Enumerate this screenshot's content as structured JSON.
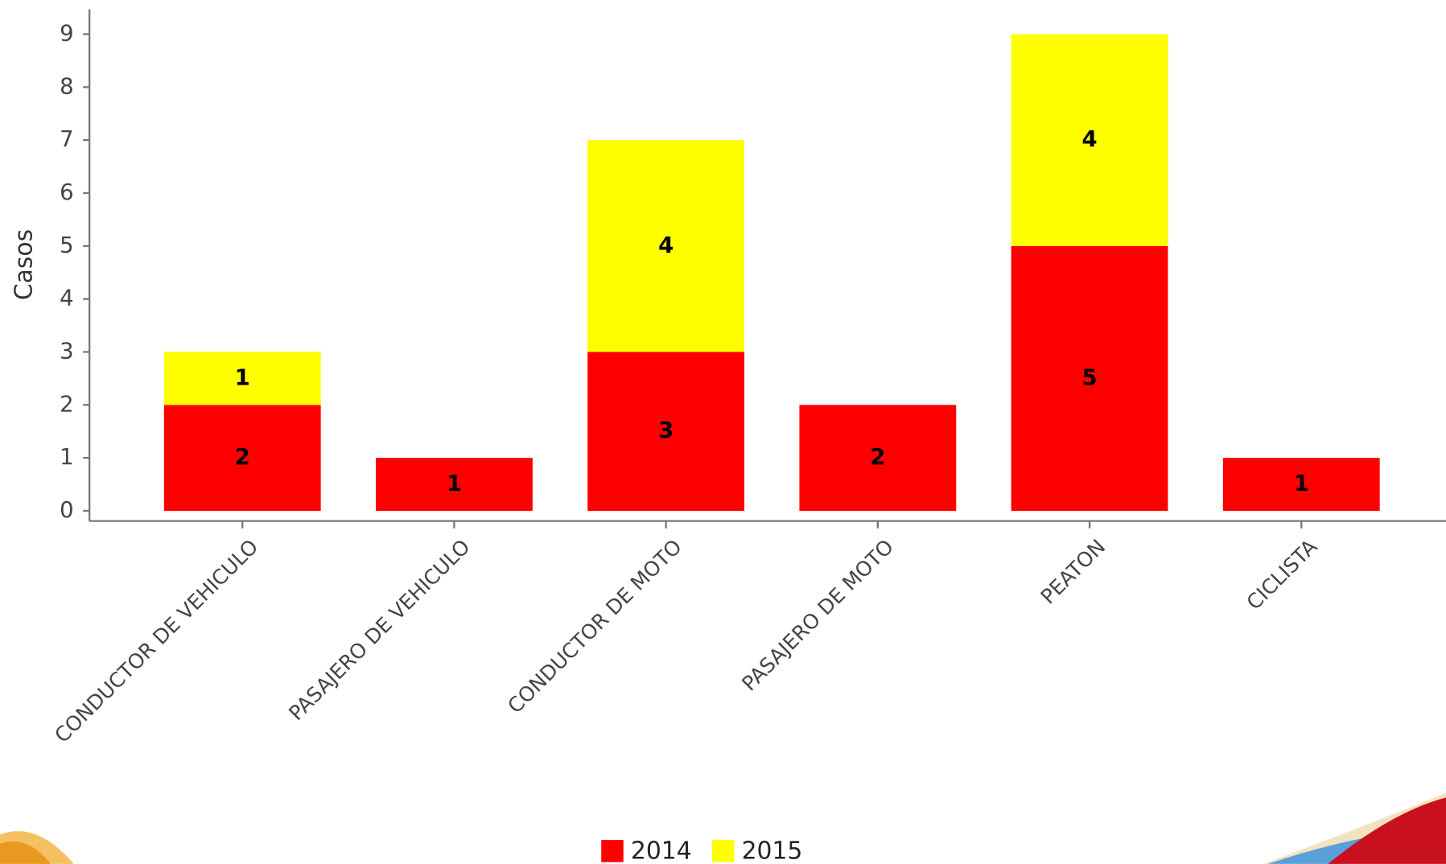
{
  "chart_data": {
    "type": "stacked_bar",
    "y_label": "Casos",
    "categories": [
      "CONDUCTOR DE VEHICULO",
      "PASAJERO DE VEHICULO",
      "CONDUCTOR DE MOTO",
      "PASAJERO DE MOTO",
      "PEATON",
      "CICLISTA"
    ],
    "series": [
      {
        "name": "2014",
        "color": "#ff0000",
        "values": [
          2,
          1,
          3,
          2,
          5,
          1
        ]
      },
      {
        "name": "2015",
        "color": "#ffff00",
        "values": [
          1,
          null,
          4,
          null,
          4,
          null
        ]
      }
    ],
    "ylim": [
      0,
      9
    ],
    "yticks": [
      0,
      1,
      2,
      3,
      4,
      5,
      6,
      7,
      8,
      9
    ],
    "legend": "bottom"
  }
}
